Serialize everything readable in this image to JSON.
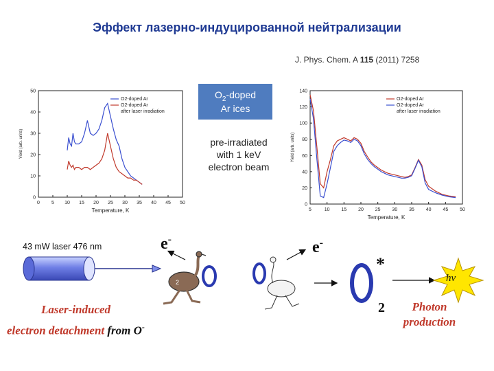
{
  "title": "Эффект лазерно-индуцированной нейтрализации",
  "reference": {
    "prefix": "J. Phys. Chem. A ",
    "volume": "115",
    "suffix": " (2011) 7258"
  },
  "o2_box": {
    "line1": "O",
    "sub": "2",
    "line1_rest": "-doped",
    "line2": "Ar ices"
  },
  "pre_irradiated": [
    "pre-irradiated",
    "with 1 keV",
    "electron beam"
  ],
  "laser_label": "43 mW laser 476 nm",
  "electron_label": "e",
  "electron_sup": "-",
  "star": "*",
  "subscript_two": "2",
  "hv": "hν",
  "laser_detachment": {
    "line1": "Laser-induced",
    "line2": "electron detachment",
    "from": "from",
    "ion": "O",
    "ion_charge": "-"
  },
  "photon": [
    "Photon",
    "production"
  ],
  "colors": {
    "title": "#1f3a93",
    "box": "#4f7cbf",
    "red": "#c0392b",
    "blue": "#3a4fd0",
    "burst": "#ffe600"
  },
  "charts": [
    {
      "xlabel": "Temperature, K",
      "ylabel": "Yield (arb. units)",
      "xlim": [
        0,
        50
      ],
      "ylim": [
        0,
        50
      ],
      "xticks": [
        0,
        5,
        10,
        15,
        20,
        25,
        30,
        35,
        40,
        45,
        50
      ],
      "yticks": [
        0,
        10,
        20,
        30,
        40,
        50
      ],
      "legend": [
        "O2-doped Ar",
        "O2-doped Ar",
        "after laser irradiation"
      ],
      "series": [
        {
          "color": "#3a4fd0",
          "x": [
            10,
            10.5,
            11,
            11.5,
            12,
            12.5,
            13,
            14,
            15,
            16,
            17,
            18,
            19,
            20,
            21,
            22,
            23,
            24,
            25,
            26,
            27,
            28,
            29,
            30,
            31,
            32,
            33,
            34,
            35,
            36
          ],
          "y": [
            22,
            28,
            25,
            24,
            30,
            26,
            25,
            25,
            26,
            30,
            36,
            30,
            29,
            30,
            32,
            36,
            42,
            44,
            38,
            32,
            27,
            24,
            18,
            14,
            12,
            10,
            9,
            8,
            7,
            6
          ]
        },
        {
          "color": "#c0392b",
          "x": [
            10,
            10.5,
            11,
            11.5,
            12,
            12.5,
            13,
            14,
            15,
            16,
            17,
            18,
            19,
            20,
            21,
            22,
            23,
            24,
            25,
            26,
            27,
            28,
            29,
            30,
            31,
            32,
            33,
            34,
            35,
            36
          ],
          "y": [
            13,
            17,
            15,
            14,
            15,
            13,
            14,
            14,
            13,
            14,
            14,
            13,
            14,
            15,
            16,
            18,
            22,
            30,
            24,
            18,
            14,
            12,
            11,
            10,
            9,
            9,
            8,
            8,
            7,
            6
          ]
        }
      ]
    },
    {
      "xlabel": "Temperature, K",
      "ylabel": "Yield (arb. units)",
      "xlim": [
        5,
        50
      ],
      "ylim": [
        0,
        140
      ],
      "xticks": [
        5,
        10,
        15,
        20,
        25,
        30,
        35,
        40,
        45,
        50
      ],
      "yticks": [
        0,
        20,
        40,
        60,
        80,
        100,
        120,
        140
      ],
      "legend": [
        "O2-doped Ar",
        "O2-doped Ar",
        "after laser irradiation"
      ],
      "series": [
        {
          "color": "#c0392b",
          "x": [
            5,
            6,
            7,
            8,
            9,
            10,
            11,
            12,
            13,
            14,
            15,
            16,
            17,
            18,
            19,
            20,
            21,
            22,
            23,
            24,
            25,
            26,
            27,
            28,
            29,
            30,
            31,
            32,
            33,
            34,
            35,
            36,
            37,
            38,
            39,
            40,
            42,
            44,
            46,
            48
          ],
          "y": [
            135,
            115,
            70,
            25,
            20,
            40,
            55,
            72,
            78,
            80,
            82,
            80,
            78,
            82,
            80,
            75,
            65,
            58,
            52,
            48,
            45,
            42,
            40,
            38,
            37,
            36,
            35,
            34,
            33,
            34,
            36,
            45,
            55,
            48,
            30,
            22,
            16,
            12,
            10,
            9
          ]
        },
        {
          "color": "#3a4fd0",
          "x": [
            5,
            6,
            7,
            8,
            9,
            10,
            11,
            12,
            13,
            14,
            15,
            16,
            17,
            18,
            19,
            20,
            21,
            22,
            23,
            24,
            25,
            26,
            27,
            28,
            29,
            30,
            31,
            32,
            33,
            34,
            35,
            36,
            37,
            38,
            39,
            40,
            42,
            44,
            46,
            48
          ],
          "y": [
            130,
            105,
            55,
            10,
            8,
            25,
            45,
            65,
            72,
            76,
            79,
            78,
            76,
            80,
            78,
            72,
            62,
            55,
            50,
            46,
            43,
            40,
            38,
            36,
            35,
            34,
            33,
            32,
            32,
            33,
            35,
            44,
            54,
            46,
            26,
            18,
            14,
            11,
            9,
            8
          ]
        }
      ]
    }
  ]
}
